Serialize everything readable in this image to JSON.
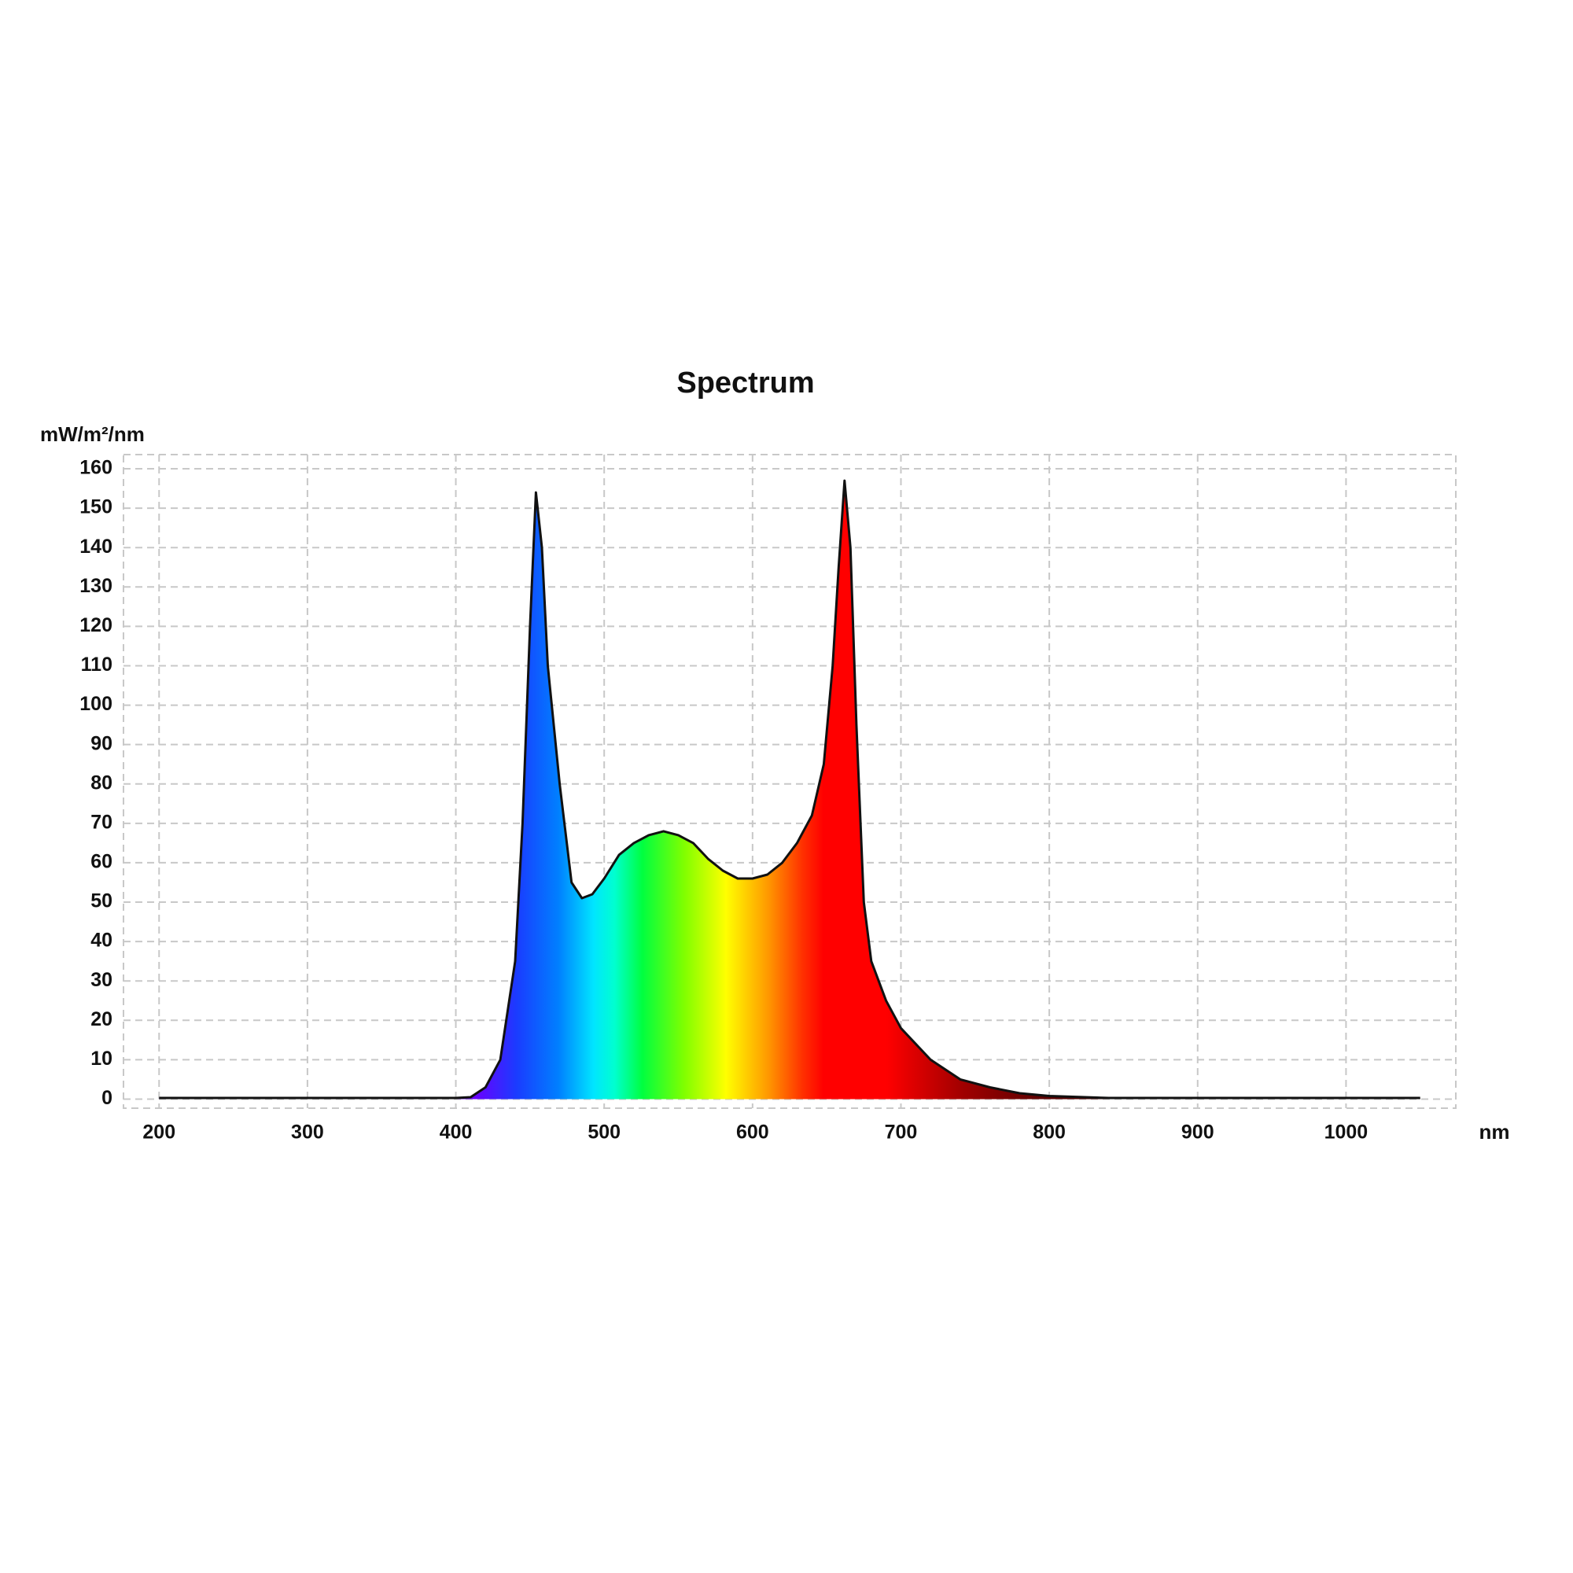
{
  "chart_data": {
    "type": "area",
    "title": "Spectrum",
    "y_label": "mW/m²/nm",
    "x_label": "nm",
    "x": [
      200,
      400,
      410,
      420,
      430,
      440,
      445,
      450,
      454,
      458,
      462,
      470,
      478,
      485,
      492,
      500,
      510,
      520,
      530,
      540,
      550,
      560,
      570,
      580,
      590,
      600,
      610,
      620,
      630,
      640,
      648,
      654,
      658,
      662,
      666,
      670,
      675,
      680,
      690,
      700,
      720,
      740,
      760,
      780,
      800,
      840,
      1050
    ],
    "values": [
      0.3,
      0.3,
      0.5,
      3,
      10,
      35,
      70,
      120,
      154,
      140,
      110,
      80,
      55,
      51,
      52,
      56,
      62,
      65,
      67,
      68,
      67,
      65,
      61,
      58,
      56,
      56,
      57,
      60,
      65,
      72,
      85,
      110,
      135,
      157,
      140,
      95,
      50,
      35,
      25,
      18,
      10,
      5,
      3,
      1.5,
      0.8,
      0.3,
      0.3
    ],
    "color": "#111111",
    "xlim": [
      176,
      1074
    ],
    "ylim": [
      -2.3,
      163.6
    ],
    "xticks": [
      200,
      300,
      400,
      500,
      600,
      700,
      800,
      900,
      1000
    ],
    "yticks": [
      0,
      10,
      20,
      30,
      40,
      50,
      60,
      70,
      80,
      90,
      100,
      110,
      120,
      130,
      140,
      150,
      160
    ],
    "grid": true
  }
}
